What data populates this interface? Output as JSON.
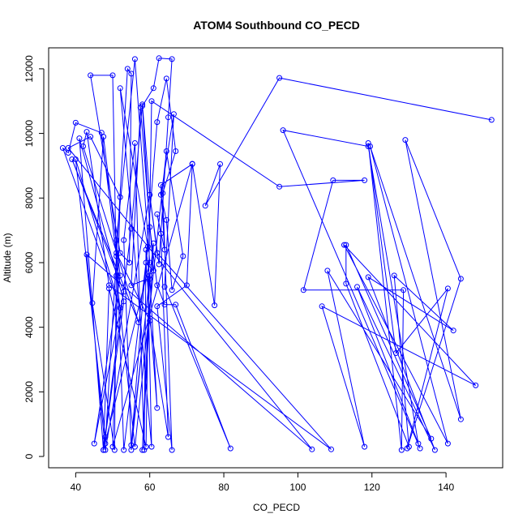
{
  "chart_data": {
    "type": "line",
    "title": "ATOM4 Southbound CO_PECD",
    "xlabel": "CO_PECD",
    "ylabel": "Altitude (m)",
    "xlim": [
      32.7,
      155.3
    ],
    "ylim": [
      -350,
      12650
    ],
    "x_ticks": [
      "40",
      "60",
      "80",
      "100",
      "120",
      "140"
    ],
    "y_ticks": [
      "0",
      "2000",
      "4000",
      "6000",
      "8000",
      "10000",
      "12000"
    ],
    "grid": false,
    "legend": "none",
    "marker": "open-circle",
    "color": "#0000FF",
    "series": [
      {
        "points": [
          [
            152.3,
            10420
          ],
          [
            95.0,
            11720
          ],
          [
            75.0,
            7760
          ],
          [
            79.0,
            9050
          ],
          [
            77.5,
            4680
          ],
          [
            71.5,
            9060
          ],
          [
            50.0,
            300
          ],
          [
            52.0,
            8030
          ],
          [
            44.0,
            9900
          ],
          [
            38.0,
            9550
          ],
          [
            103.8,
            220
          ],
          [
            43.0,
            6250
          ],
          [
            48.0,
            200
          ],
          [
            60.0,
            8100
          ],
          [
            62.5,
            5950
          ],
          [
            65.0,
            10500
          ],
          [
            66.0,
            12300
          ],
          [
            62.5,
            12330
          ],
          [
            61.0,
            11400
          ],
          [
            58.0,
            10850
          ],
          [
            60.0,
            7100
          ],
          [
            62.0,
            5300
          ],
          [
            64.0,
            4700
          ],
          [
            67.0,
            4700
          ],
          [
            81.8,
            250
          ],
          [
            64.0,
            5250
          ],
          [
            66.5,
            10600
          ],
          [
            63.0,
            8100
          ],
          [
            64.5,
            7320
          ],
          [
            66.0,
            5150
          ],
          [
            69.0,
            6200
          ],
          [
            64.5,
            9450
          ],
          [
            56.0,
            300
          ],
          [
            51.0,
            5600
          ],
          [
            50.0,
            11800
          ],
          [
            44.0,
            11800
          ],
          [
            52.0,
            6300
          ],
          [
            54.5,
            6000
          ],
          [
            55.0,
            11850
          ],
          [
            54.0,
            12000
          ],
          [
            48.0,
            400
          ],
          [
            51.0,
            6200
          ],
          [
            47.0,
            10020
          ],
          [
            40.0,
            10330
          ],
          [
            38.0,
            9400
          ],
          [
            36.5,
            9550
          ],
          [
            52.0,
            4600
          ],
          [
            40.0,
            9200
          ],
          [
            48.0,
            600
          ],
          [
            53.0,
            4800
          ],
          [
            41.0,
            9850
          ],
          [
            47.5,
            200
          ],
          [
            55.0,
            7050
          ],
          [
            58.0,
            10900
          ],
          [
            60.0,
            8100
          ],
          [
            62.0,
            6300
          ],
          [
            109.0,
            220
          ],
          [
            49.0,
            5300
          ],
          [
            43.0,
            10050
          ],
          [
            42.0,
            9600
          ],
          [
            57.0,
            4150
          ],
          [
            39.0,
            9200
          ],
          [
            53.0,
            5100
          ],
          [
            45.0,
            400
          ],
          [
            52.0,
            5600
          ],
          [
            47.5,
            9900
          ],
          [
            44.5,
            4750
          ],
          [
            50.5,
            200
          ],
          [
            51.0,
            6300
          ],
          [
            60.0,
            4200
          ],
          [
            65.0,
            600
          ],
          [
            63.0,
            6900
          ],
          [
            62.0,
            7500
          ],
          [
            64.0,
            6400
          ],
          [
            63.0,
            8400
          ],
          [
            71.5,
            9050
          ],
          [
            70.0,
            5300
          ],
          [
            62.0,
            4650
          ],
          [
            66.0,
            200
          ],
          [
            63.5,
            8150
          ],
          [
            67.0,
            9450
          ],
          [
            64.5,
            11700
          ],
          [
            62.0,
            10350
          ],
          [
            55.0,
            350
          ],
          [
            61.0,
            6600
          ],
          [
            58.0,
            200
          ],
          [
            60.0,
            5500
          ],
          [
            59.0,
            6400
          ],
          [
            58.5,
            200
          ],
          [
            56.0,
            9700
          ],
          [
            53.0,
            6700
          ],
          [
            55.0,
            200
          ],
          [
            60.0,
            5600
          ],
          [
            62.0,
            1500
          ],
          [
            59.0,
            6000
          ],
          [
            61.0,
            5750
          ],
          [
            57.5,
            10800
          ],
          [
            55.0,
            5300
          ],
          [
            59.5,
            5500
          ],
          [
            60.5,
            300
          ],
          [
            52.0,
            11400
          ],
          [
            59.5,
            6500
          ],
          [
            53.0,
            200
          ],
          [
            51.0,
            6700
          ],
          [
            56.0,
            12300
          ],
          [
            60.0,
            6000
          ],
          [
            47.5,
            200
          ],
          [
            49.0,
            5200
          ],
          [
            59.0,
            300
          ],
          [
            60.5,
            11000
          ],
          [
            95.0,
            8350
          ],
          [
            118.0,
            8550
          ],
          [
            109.5,
            8550
          ],
          [
            101.5,
            5150
          ],
          [
            128.5,
            5150
          ],
          [
            128.0,
            200
          ],
          [
            119.0,
            9700
          ],
          [
            126.5,
            3200
          ],
          [
            140.5,
            5200
          ],
          [
            129.5,
            250
          ],
          [
            144.0,
            5500
          ],
          [
            129.0,
            9800
          ],
          [
            144.0,
            1150
          ],
          [
            119.5,
            9600
          ],
          [
            140.5,
            400
          ],
          [
            112.5,
            6550
          ],
          [
            148.0,
            2200
          ],
          [
            106.5,
            4650
          ],
          [
            118.0,
            300
          ],
          [
            108.0,
            5750
          ],
          [
            136.0,
            550
          ],
          [
            113.0,
            6550
          ],
          [
            113.0,
            5350
          ],
          [
            130.0,
            300
          ],
          [
            126.0,
            5600
          ],
          [
            142.0,
            3900
          ],
          [
            119.0,
            5550
          ],
          [
            137.0,
            200
          ],
          [
            116.0,
            5250
          ],
          [
            132.5,
            400
          ],
          [
            119.0,
            9600
          ],
          [
            96.0,
            10100
          ],
          [
            133.0,
            250
          ]
        ]
      }
    ]
  }
}
